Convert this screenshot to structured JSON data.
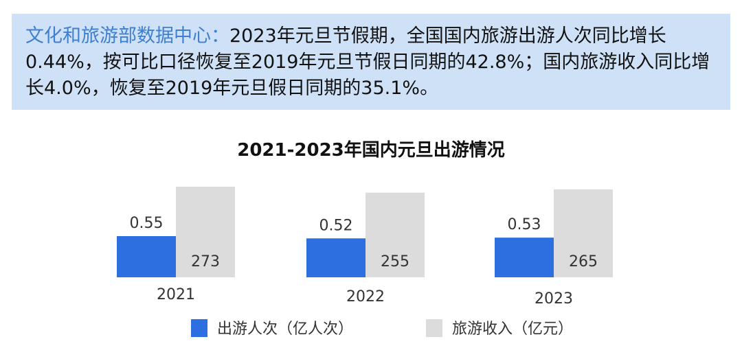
{
  "banner": {
    "source": "文化和旅游部数据中心：",
    "text": "2023年元旦节假期，全国国内旅游出游人次同比增长0.44%，按可比口径恢复至2019年元旦节假日同期的42.8%；国内旅游收入同比增长4.0%，恢复至2019年元旦假日同期的35.1%。"
  },
  "chart_data": {
    "type": "bar",
    "title": "2021-2023年国内元旦出游情况",
    "categories": [
      "2021",
      "2022",
      "2023"
    ],
    "series": [
      {
        "name": "出游人次（亿人次）",
        "values": [
          0.55,
          0.52,
          0.53
        ],
        "color": "#2d6fe0"
      },
      {
        "name": "旅游收入（亿元）",
        "values": [
          273,
          255,
          265
        ],
        "color": "#dcdcdc"
      }
    ],
    "legend_position": "bottom",
    "grid": false
  }
}
